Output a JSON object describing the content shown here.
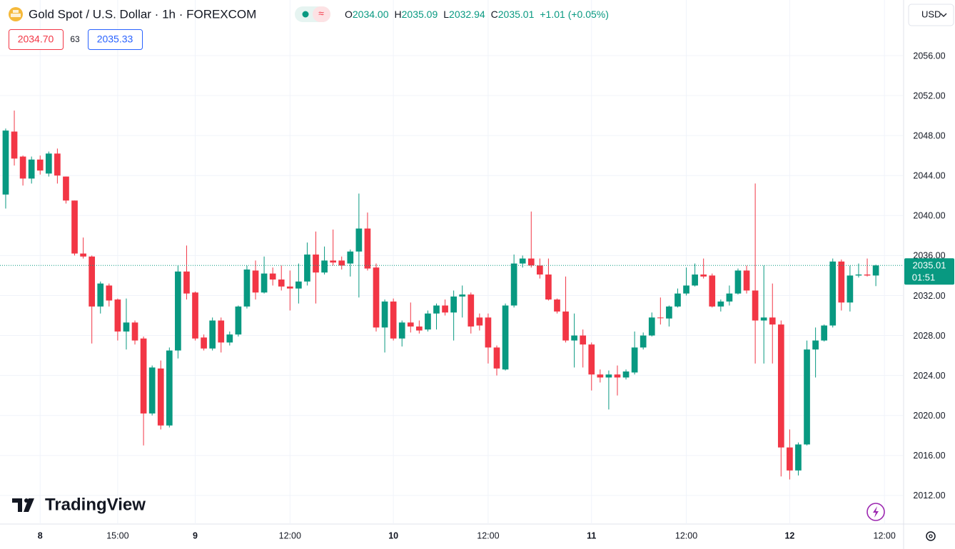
{
  "header": {
    "title": "Gold Spot / U.S. Dollar · 1h · FOREXCOM",
    "ohlc": [
      {
        "key": "O",
        "value": "2034.00"
      },
      {
        "key": "H",
        "value": "2035.09"
      },
      {
        "key": "L",
        "value": "2032.94"
      },
      {
        "key": "C",
        "value": "2035.01"
      }
    ],
    "change": "+1.01 (+0.05%)",
    "currency": "USD",
    "sell": "2034.70",
    "spread": "63",
    "buy": "2035.33"
  },
  "brand": "TradingView",
  "chart_data": {
    "type": "candlestick",
    "up_color": "#089981",
    "down_color": "#f23645",
    "xlim": [
      -0.66,
      104.14
    ],
    "xticks": [
      {
        "value": 4,
        "label": "8"
      },
      {
        "value": 13,
        "label": "15:00"
      },
      {
        "value": 22,
        "label": "9"
      },
      {
        "value": 33,
        "label": "12:00"
      },
      {
        "value": 45,
        "label": "10"
      },
      {
        "value": 56,
        "label": "12:00"
      },
      {
        "value": 68,
        "label": "11"
      },
      {
        "value": 79,
        "label": "12:00"
      },
      {
        "value": 91,
        "label": "12"
      },
      {
        "value": 102,
        "label": "12:00"
      }
    ],
    "ylim": [
      2009.14,
      2061.56
    ],
    "yticks": [
      {
        "value": 2012,
        "label": "2012.00"
      },
      {
        "value": 2016,
        "label": "2016.00"
      },
      {
        "value": 2020,
        "label": "2020.00"
      },
      {
        "value": 2024,
        "label": "2024.00"
      },
      {
        "value": 2028,
        "label": "2028.00"
      },
      {
        "value": 2032,
        "label": "2032.00"
      },
      {
        "value": 2036,
        "label": "2036.00"
      },
      {
        "value": 2040,
        "label": "2040.00"
      },
      {
        "value": 2044,
        "label": "2044.00"
      },
      {
        "value": 2048,
        "label": "2048.00"
      },
      {
        "value": 2052,
        "label": "2052.00"
      },
      {
        "value": 2056,
        "label": "2056.00"
      }
    ],
    "grid": true,
    "last_price": {
      "value": 2035.01,
      "label": "2035.01"
    },
    "countdown": "01:51",
    "open": [
      2042.1,
      2048.4,
      2045.9,
      2043.7,
      2045.6,
      2044.2,
      2046.2,
      2043.9,
      2041.5,
      2036.2,
      2035.9,
      2030.9,
      2033.0,
      2031.6,
      2028.4,
      2029.3,
      2027.7,
      2020.2,
      2024.7,
      2019.0,
      2026.5,
      2034.4,
      2032.3,
      2027.8,
      2026.7,
      2029.5,
      2027.3,
      2028.1,
      2030.9,
      2034.5,
      2032.3,
      2034.2,
      2033.6,
      2032.9,
      2032.7,
      2033.4,
      2036.1,
      2034.3,
      2035.5,
      2035.5,
      2035.2,
      2036.4,
      2038.7,
      2034.8,
      2028.8,
      2031.4,
      2027.7,
      2029.3,
      2028.9,
      2028.6,
      2030.2,
      2031.0,
      2030.3,
      2031.9,
      2032.1,
      2029.8,
      2029.8,
      2026.8,
      2024.6,
      2031.0,
      2035.2,
      2035.7,
      2035.0,
      2034.1,
      2031.6,
      2030.4,
      2027.5,
      2028.0,
      2027.1,
      2024.1,
      2023.8,
      2024.1,
      2023.8,
      2024.3,
      2026.8,
      2028.0,
      2029.8,
      2029.7,
      2030.9,
      2032.2,
      2033.0,
      2034.1,
      2034.0,
      2030.9,
      2031.4,
      2032.2,
      2034.5,
      2032.5,
      2029.5,
      2029.8,
      2029.1,
      2016.8,
      2014.5,
      2017.1,
      2026.6,
      2027.5,
      2029.0,
      2035.4,
      2031.3,
      2034.0,
      2034.1,
      2034.0
    ],
    "high": [
      2048.7,
      2050.5,
      2046.0,
      2045.9,
      2046.0,
      2046.4,
      2046.7,
      2043.9,
      2041.5,
      2037.8,
      2036.0,
      2033.4,
      2033.2,
      2031.7,
      2031.7,
      2029.5,
      2027.9,
      2025.0,
      2025.5,
      2026.8,
      2035.0,
      2037.0,
      2032.4,
      2028.1,
      2029.8,
      2029.8,
      2028.4,
      2031.0,
      2035.0,
      2035.5,
      2035.9,
      2034.8,
      2035.0,
      2034.5,
      2035.2,
      2037.3,
      2038.4,
      2036.9,
      2038.6,
      2035.9,
      2036.6,
      2042.2,
      2040.3,
      2035.2,
      2031.6,
      2031.7,
      2029.5,
      2031.3,
      2029.5,
      2030.5,
      2031.2,
      2031.6,
      2032.5,
      2033.0,
      2032.3,
      2030.2,
      2030.2,
      2027.0,
      2031.2,
      2036.1,
      2036.0,
      2040.4,
      2035.7,
      2035.7,
      2031.7,
      2033.9,
      2030.2,
      2028.6,
      2027.3,
      2024.6,
      2024.5,
      2025.0,
      2024.6,
      2028.4,
      2028.3,
      2030.3,
      2031.8,
      2031.0,
      2032.7,
      2034.8,
      2035.2,
      2035.7,
      2034.2,
      2031.6,
      2033.0,
      2034.7,
      2035.0,
      2043.2,
      2035.0,
      2033.2,
      2029.5,
      2018.6,
      2017.3,
      2027.5,
      2028.8,
      2029.1,
      2035.7,
      2035.6,
      2035.0,
      2035.2,
      2035.7,
      2035.09
    ],
    "low": [
      2040.7,
      2045.0,
      2043.0,
      2043.2,
      2044.1,
      2043.9,
      2043.2,
      2041.2,
      2036.0,
      2035.7,
      2027.2,
      2030.2,
      2030.9,
      2027.5,
      2026.6,
      2027.1,
      2017.0,
      2020.0,
      2018.6,
      2018.8,
      2025.7,
      2031.6,
      2027.5,
      2026.5,
      2026.5,
      2026.3,
      2027.0,
      2027.9,
      2030.7,
      2031.6,
      2032.2,
      2033.0,
      2032.5,
      2030.5,
      2031.2,
      2033.0,
      2031.2,
      2034.1,
      2035.0,
      2034.6,
      2033.9,
      2031.8,
      2034.5,
      2028.4,
      2026.3,
      2027.5,
      2026.9,
      2028.3,
      2028.2,
      2028.4,
      2028.6,
      2030.0,
      2027.5,
      2029.8,
      2028.2,
      2028.5,
      2025.2,
      2024.0,
      2024.5,
      2030.8,
      2034.8,
      2034.8,
      2033.7,
      2031.5,
      2030.2,
      2027.3,
      2024.8,
      2024.8,
      2022.5,
      2023.3,
      2020.6,
      2022.0,
      2023.6,
      2024.1,
      2026.6,
      2027.9,
      2029.1,
      2028.9,
      2030.8,
      2032.0,
      2032.9,
      2033.7,
      2030.8,
      2030.4,
      2031.0,
      2032.1,
      2032.2,
      2025.2,
      2025.2,
      2025.2,
      2013.9,
      2013.6,
      2014.0,
      2017.0,
      2023.8,
      2027.4,
      2028.8,
      2030.5,
      2030.4,
      2033.8,
      2033.9,
      2032.94
    ],
    "close": [
      2048.5,
      2045.7,
      2043.7,
      2045.6,
      2044.5,
      2046.2,
      2044.0,
      2041.5,
      2036.2,
      2035.9,
      2030.9,
      2033.2,
      2031.5,
      2028.4,
      2029.3,
      2027.5,
      2020.2,
      2024.8,
      2019.0,
      2026.5,
      2034.4,
      2032.2,
      2027.7,
      2026.7,
      2029.5,
      2027.3,
      2028.1,
      2030.9,
      2034.6,
      2032.3,
      2034.2,
      2033.6,
      2032.9,
      2032.7,
      2033.4,
      2036.1,
      2034.3,
      2035.5,
      2035.3,
      2035.0,
      2036.4,
      2038.7,
      2034.7,
      2028.8,
      2031.4,
      2027.7,
      2029.3,
      2028.9,
      2028.5,
      2030.2,
      2031.0,
      2030.3,
      2031.9,
      2032.1,
      2028.9,
      2029.0,
      2026.8,
      2024.7,
      2031.0,
      2035.2,
      2035.7,
      2035.0,
      2034.1,
      2031.6,
      2030.4,
      2027.5,
      2028.0,
      2027.1,
      2024.1,
      2023.8,
      2024.1,
      2023.8,
      2024.4,
      2026.8,
      2028.0,
      2029.8,
      2029.75,
      2030.9,
      2032.2,
      2033.0,
      2034.1,
      2033.9,
      2030.9,
      2031.4,
      2032.2,
      2034.5,
      2032.5,
      2029.5,
      2029.8,
      2029.1,
      2016.8,
      2014.5,
      2017.1,
      2026.6,
      2027.5,
      2029.0,
      2035.4,
      2031.3,
      2034.0,
      2034.1,
      2034.0,
      2035.01
    ]
  }
}
